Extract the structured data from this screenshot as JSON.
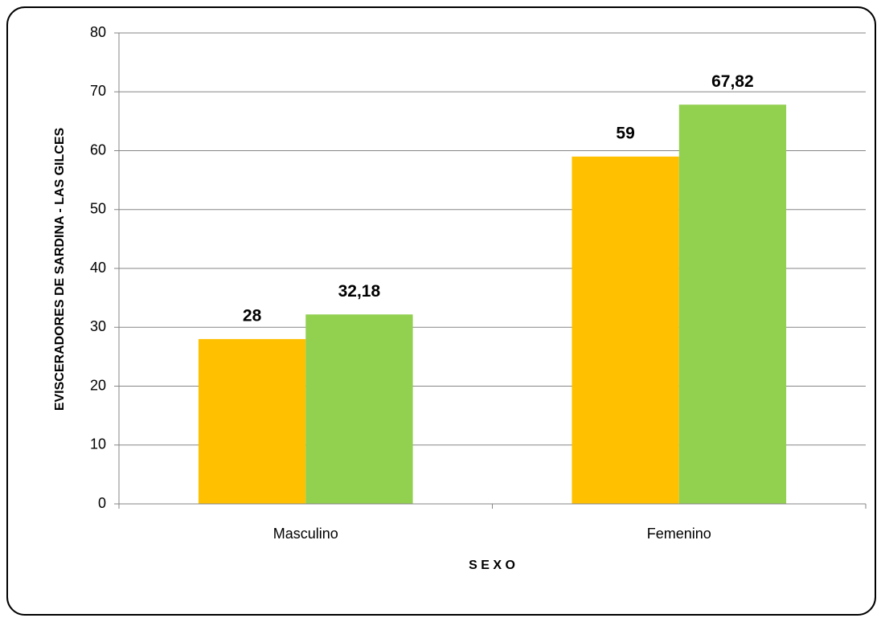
{
  "chart_data": {
    "type": "bar",
    "y_label": "EVISCERADORES DE SARDINA - LAS GILCES",
    "x_label": "S E X O",
    "categories": [
      "Masculino",
      "Femenino"
    ],
    "series": [
      {
        "color": "#FFC000",
        "values": [
          28,
          59
        ],
        "value_labels": [
          "28",
          "59"
        ]
      },
      {
        "color": "#92D050",
        "values": [
          32.18,
          67.82
        ],
        "value_labels": [
          "32,18",
          "67,82"
        ]
      }
    ],
    "ylim": [
      0,
      80
    ],
    "yticks": [
      0,
      10,
      20,
      30,
      40,
      50,
      60,
      70,
      80
    ],
    "grid": true
  }
}
